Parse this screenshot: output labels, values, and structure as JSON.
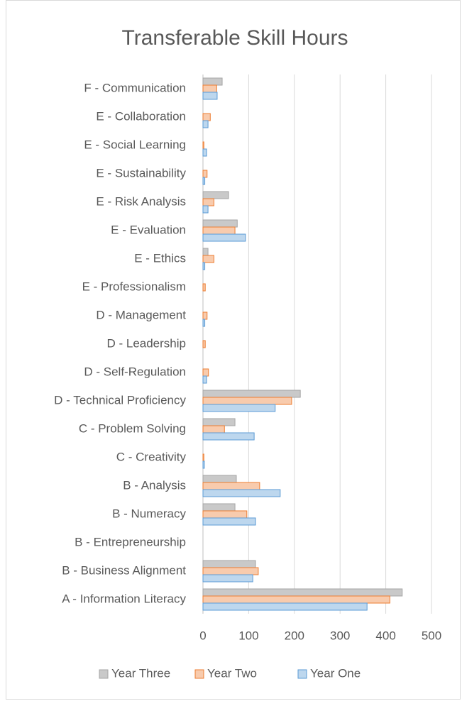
{
  "chart_data": {
    "type": "hbar",
    "title": "Transferable Skill Hours",
    "categories": [
      "A - Information Literacy",
      "B - Business Alignment",
      "B - Entrepreneurship",
      "B - Numeracy",
      "B - Analysis",
      "C - Creativity",
      "C - Problem Solving",
      "D - Technical Proficiency",
      "D - Self-Regulation",
      "D - Leadership",
      "D - Management",
      "E - Professionalism",
      "E - Ethics",
      "E - Evaluation",
      "E - Risk Analysis",
      "E - Sustainability",
      "E - Social Learning",
      "E - Collaboration",
      "F - Communication"
    ],
    "series": [
      {
        "name": "Year Three",
        "color": "#c9c9c9",
        "edge": "#a5a5a5",
        "values": [
          436,
          115,
          0,
          70,
          73,
          0,
          70,
          213,
          0,
          0,
          0,
          0,
          11,
          75,
          56,
          0,
          0,
          0,
          42
        ]
      },
      {
        "name": "Year Two",
        "color": "#f8cbad",
        "edge": "#ed7d31",
        "values": [
          409,
          121,
          0,
          96,
          124,
          2,
          47,
          194,
          12,
          5,
          9,
          5,
          24,
          70,
          24,
          9,
          2,
          16,
          30
        ]
      },
      {
        "name": "Year One",
        "color": "#bdd7ee",
        "edge": "#5b9bd5",
        "values": [
          359,
          109,
          0,
          115,
          169,
          3,
          112,
          158,
          8,
          0,
          4,
          0,
          4,
          93,
          11,
          4,
          8,
          11,
          31
        ]
      }
    ],
    "xlim": [
      0,
      500
    ],
    "xticks": [
      0,
      100,
      200,
      300,
      400,
      500
    ],
    "grid": true,
    "legend": "bottom"
  }
}
